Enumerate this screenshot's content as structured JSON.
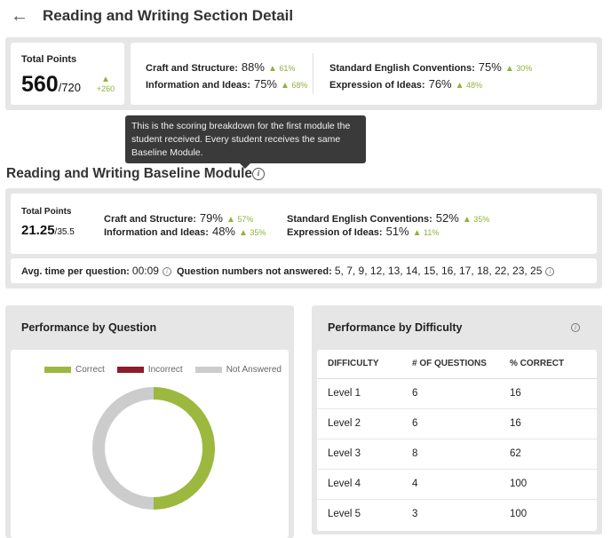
{
  "header": {
    "back_icon": "arrow-left-icon",
    "title": "Reading and Writing Section Detail"
  },
  "section_summary": {
    "total_points_label": "Total Points",
    "score": "560",
    "max": "/720",
    "change": "+260",
    "metrics": [
      {
        "label": "Craft and Structure:",
        "pct": "88%",
        "change": "61%"
      },
      {
        "label": "Information and Ideas:",
        "pct": "75%",
        "change": "68%"
      },
      {
        "label": "Standard English Conventions:",
        "pct": "75%",
        "change": "30%"
      },
      {
        "label": "Expression of Ideas:",
        "pct": "76%",
        "change": "48%"
      }
    ]
  },
  "tooltip": {
    "text": "This is the scoring breakdown for the first module the student received. Every student receives the same Baseline Module."
  },
  "module": {
    "title": "Reading and Writing Baseline Module",
    "total_points_label": "Total Points",
    "score": "21.25",
    "max": "/35.5",
    "metrics": [
      {
        "label": "Craft and Structure:",
        "pct": "79%",
        "change": "57%"
      },
      {
        "label": "Information and Ideas:",
        "pct": "48%",
        "change": "35%"
      },
      {
        "label": "Standard English Conventions:",
        "pct": "52%",
        "change": "35%"
      },
      {
        "label": "Expression of Ideas:",
        "pct": "51%",
        "change": "11%"
      }
    ],
    "avg_time_label": "Avg. time per question:",
    "avg_time_value": "00:09",
    "not_answered_label": "Question numbers not answered:",
    "not_answered_value": "5, 7, 9, 12, 13, 14, 15, 16, 17, 18, 22, 23, 25"
  },
  "performance_by_question": {
    "title": "Performance by Question",
    "legend": [
      {
        "label": "Correct",
        "color": "#9cb83f"
      },
      {
        "label": "Incorrect",
        "color": "#8b1d2c"
      },
      {
        "label": "Not Answered",
        "color": "#cccccc"
      }
    ],
    "chart_data": {
      "type": "pie",
      "categories": [
        "Correct",
        "Incorrect",
        "Not Answered"
      ],
      "values": [
        50,
        0,
        50
      ],
      "colors": [
        "#9cb83f",
        "#8b1d2c",
        "#cccccc"
      ]
    }
  },
  "performance_by_difficulty": {
    "title": "Performance by Difficulty",
    "columns": [
      "DIFFICULTY",
      "# OF QUESTIONS",
      "% CORRECT"
    ],
    "rows": [
      [
        "Level 1",
        "6",
        "16"
      ],
      [
        "Level 2",
        "6",
        "16"
      ],
      [
        "Level 3",
        "8",
        "62"
      ],
      [
        "Level 4",
        "4",
        "100"
      ],
      [
        "Level 5",
        "3",
        "100"
      ]
    ]
  }
}
